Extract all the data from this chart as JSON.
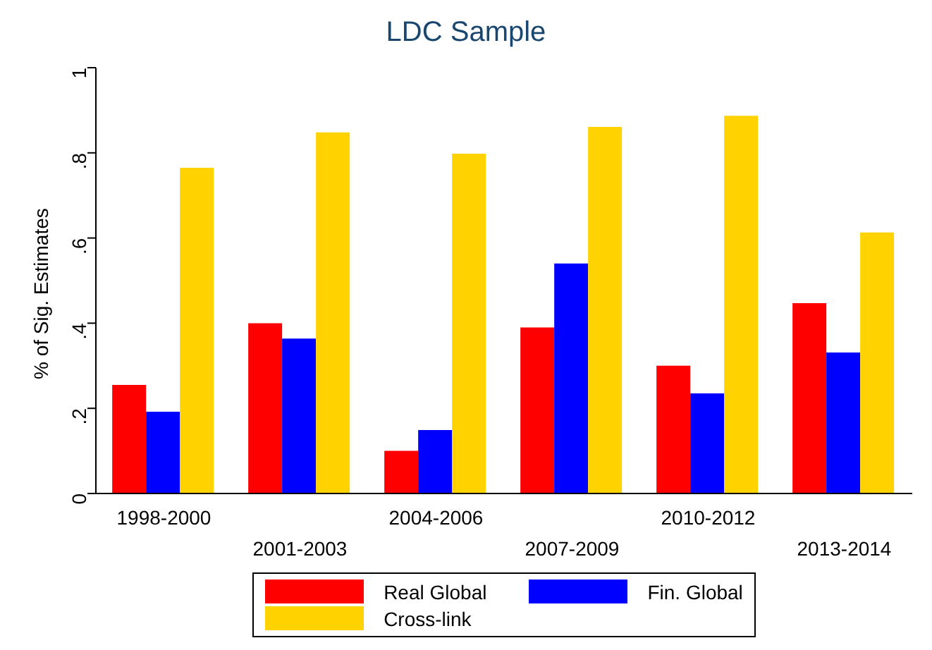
{
  "chart_data": {
    "type": "bar",
    "title": "LDC Sample",
    "ylabel": "% of Sig. Estimates",
    "categories": [
      "1998-2000",
      "2001-2003",
      "2004-2006",
      "2007-2009",
      "2010-2012",
      "2013-2014"
    ],
    "series": [
      {
        "name": "Real Global",
        "color": "#ff0000",
        "values": [
          0.255,
          0.4,
          0.1,
          0.39,
          0.3,
          0.447
        ]
      },
      {
        "name": "Fin. Global",
        "color": "#0000ff",
        "values": [
          0.192,
          0.364,
          0.149,
          0.54,
          0.235,
          0.331
        ]
      },
      {
        "name": "Cross-link",
        "color": "#ffd200",
        "values": [
          0.765,
          0.848,
          0.798,
          0.861,
          0.887,
          0.613
        ]
      }
    ],
    "ylim": [
      0,
      1.0
    ],
    "yticks": [
      {
        "value": 0,
        "label": "0"
      },
      {
        "value": 0.2,
        "label": ".2"
      },
      {
        "value": 0.4,
        "label": ".4"
      },
      {
        "value": 0.6,
        "label": ".6"
      },
      {
        "value": 0.8,
        "label": ".8"
      },
      {
        "value": 1,
        "label": "1"
      }
    ],
    "grid": false,
    "legend": "bottom"
  }
}
